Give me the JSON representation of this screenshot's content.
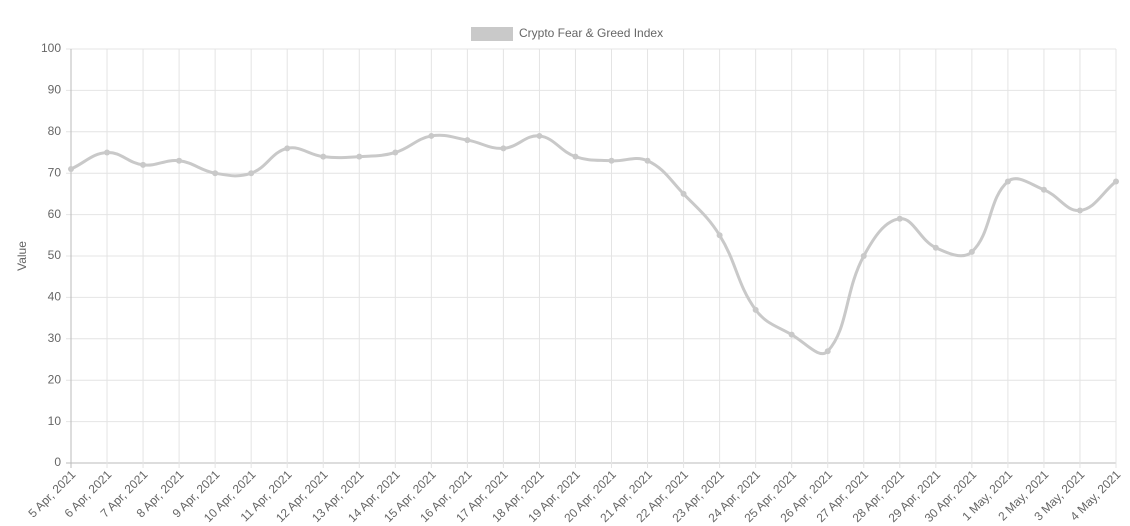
{
  "chart_data": {
    "type": "line",
    "y_label": "Value",
    "categories": [
      "5 Apr, 2021",
      "6 Apr, 2021",
      "7 Apr, 2021",
      "8 Apr, 2021",
      "9 Apr, 2021",
      "10 Apr, 2021",
      "11 Apr, 2021",
      "12 Apr, 2021",
      "13 Apr, 2021",
      "14 Apr, 2021",
      "15 Apr, 2021",
      "16 Apr, 2021",
      "17 Apr, 2021",
      "18 Apr, 2021",
      "19 Apr, 2021",
      "20 Apr, 2021",
      "21 Apr, 2021",
      "22 Apr, 2021",
      "23 Apr, 2021",
      "24 Apr, 2021",
      "25 Apr, 2021",
      "26 Apr, 2021",
      "27 Apr, 2021",
      "28 Apr, 2021",
      "29 Apr, 2021",
      "30 Apr, 2021",
      "1 May, 2021",
      "2 May, 2021",
      "3 May, 2021",
      "4 May, 2021"
    ],
    "series": [
      {
        "name": "Crypto Fear & Greed Index",
        "color": "#c9c9c9",
        "values": [
          71,
          75,
          72,
          73,
          70,
          70,
          76,
          74,
          74,
          75,
          79,
          78,
          76,
          79,
          74,
          73,
          73,
          65,
          55,
          37,
          31,
          27,
          50,
          59,
          52,
          51,
          68,
          66,
          61,
          68
        ]
      }
    ],
    "ylim": [
      0,
      100
    ],
    "yticks": [
      0,
      10,
      20,
      30,
      40,
      50,
      60,
      70,
      80,
      90,
      100
    ],
    "grid": true,
    "legend": "top"
  }
}
